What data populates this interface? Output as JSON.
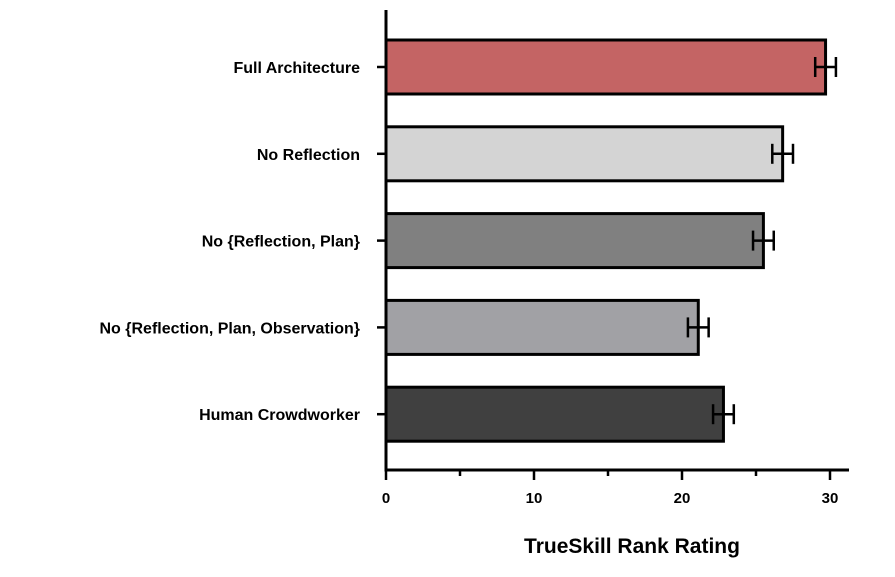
{
  "chart_data": {
    "type": "bar",
    "orientation": "horizontal",
    "title": "",
    "xlabel": "TrueSkill Rank Rating",
    "ylabel": "",
    "xlim": [
      0,
      33
    ],
    "x_ticks": [
      0,
      10,
      20,
      30
    ],
    "x_tick_labels": [
      "0",
      "10",
      "20",
      "30"
    ],
    "x_minor_ticks": [
      5,
      15,
      25
    ],
    "grid": false,
    "legend": "none",
    "categories": [
      "Full Architecture",
      "No Reflection",
      "No {Reflection, Plan}",
      "No {Reflection, Plan, Observation}",
      "Human Crowdworker"
    ],
    "values": [
      29.7,
      26.8,
      25.5,
      21.1,
      22.8
    ],
    "error_bars": [
      0.7,
      0.7,
      0.7,
      0.7,
      0.7
    ],
    "colors": [
      "#c46464",
      "#d4d4d4",
      "#808080",
      "#a1a1a5",
      "#404040"
    ]
  }
}
